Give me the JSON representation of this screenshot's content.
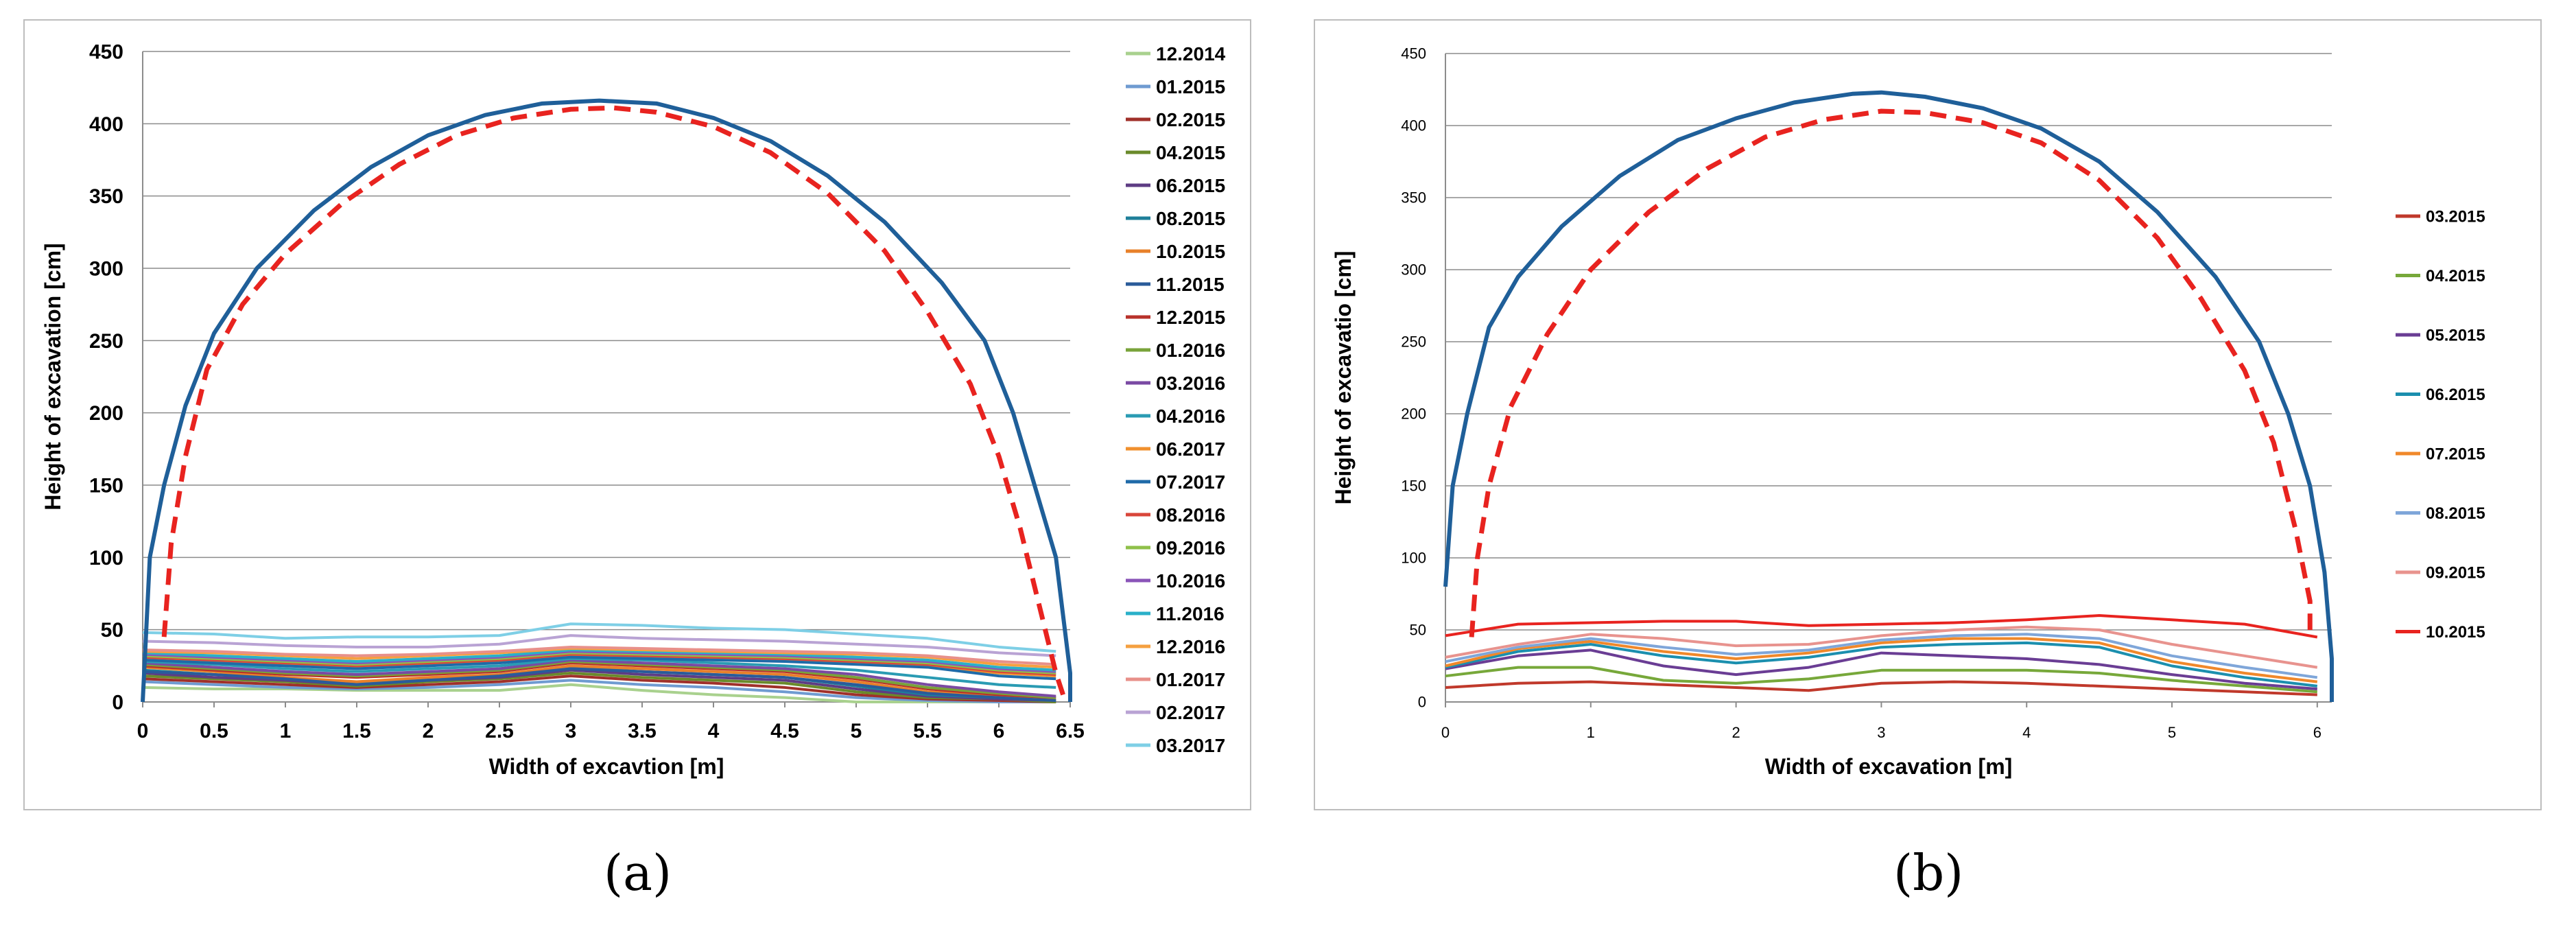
{
  "figure": {
    "caption_a": "(a)",
    "caption_b": "(b)"
  },
  "chart_data": [
    {
      "type": "line",
      "id": "a",
      "title": "",
      "xlabel": "Width of excavtion [m]",
      "ylabel": "Height of excavation [cm]",
      "xlim": [
        0,
        6.5
      ],
      "ylim": [
        0,
        450
      ],
      "x_ticks": [
        0,
        0.5,
        1,
        1.5,
        2,
        2.5,
        3,
        3.5,
        4,
        4.5,
        5,
        5.5,
        6,
        6.5
      ],
      "y_ticks": [
        0,
        50,
        100,
        150,
        200,
        250,
        300,
        350,
        400,
        450
      ],
      "grid": "horizontal",
      "legend_position": "right",
      "outline": {
        "name": "excavation profile",
        "color": "#1f5f99",
        "x": [
          0,
          0.05,
          0.15,
          0.3,
          0.5,
          0.8,
          1.2,
          1.6,
          2,
          2.4,
          2.8,
          3.2,
          3.6,
          4,
          4.4,
          4.8,
          5.2,
          5.6,
          5.9,
          6.1,
          6.25,
          6.4,
          6.5,
          6.5
        ],
        "y": [
          0,
          100,
          150,
          205,
          255,
          300,
          340,
          370,
          392,
          406,
          414,
          416,
          414,
          404,
          388,
          364,
          332,
          290,
          250,
          200,
          150,
          100,
          20,
          0
        ]
      },
      "design_profile": {
        "name": "design profile",
        "color": "#e8231f",
        "x": [
          0.15,
          0.2,
          0.3,
          0.45,
          0.7,
          1,
          1.4,
          1.8,
          2.2,
          2.6,
          3,
          3.3,
          3.6,
          4,
          4.4,
          4.8,
          5.2,
          5.5,
          5.8,
          6,
          6.15,
          6.3,
          6.4,
          6.45
        ],
        "y": [
          45,
          110,
          170,
          230,
          275,
          310,
          345,
          372,
          392,
          404,
          410,
          411,
          408,
          398,
          380,
          352,
          312,
          270,
          220,
          170,
          120,
          60,
          20,
          5
        ]
      },
      "x": [
        0,
        0.5,
        1,
        1.5,
        2,
        2.5,
        3,
        3.5,
        4,
        4.5,
        5,
        5.5,
        6,
        6.4
      ],
      "series": [
        {
          "name": "12.2014",
          "color": "#a9d18e",
          "values": [
            10,
            9,
            9,
            8,
            8,
            8,
            12,
            8,
            5,
            3,
            0,
            0,
            0,
            0
          ]
        },
        {
          "name": "01.2015",
          "color": "#6f9bd1",
          "values": [
            14,
            12,
            10,
            9,
            10,
            12,
            15,
            12,
            10,
            7,
            3,
            1,
            0,
            0
          ]
        },
        {
          "name": "02.2015",
          "color": "#a0302a",
          "values": [
            16,
            14,
            12,
            10,
            12,
            14,
            18,
            15,
            13,
            10,
            5,
            2,
            1,
            0
          ]
        },
        {
          "name": "04.2015",
          "color": "#6a8a2b",
          "values": [
            18,
            16,
            14,
            11,
            14,
            16,
            20,
            17,
            15,
            13,
            7,
            3,
            2,
            0
          ]
        },
        {
          "name": "06.2015",
          "color": "#5e3c84",
          "values": [
            20,
            17,
            15,
            12,
            15,
            17,
            22,
            19,
            17,
            15,
            9,
            4,
            2,
            1
          ]
        },
        {
          "name": "08.2015",
          "color": "#1e7f99",
          "values": [
            22,
            19,
            16,
            13,
            16,
            18,
            24,
            21,
            19,
            17,
            11,
            5,
            3,
            1
          ]
        },
        {
          "name": "10.2015",
          "color": "#e8802a",
          "values": [
            24,
            21,
            17,
            14,
            17,
            19,
            25,
            23,
            21,
            19,
            14,
            7,
            4,
            2
          ]
        },
        {
          "name": "11.2015",
          "color": "#2a5b9a",
          "values": [
            21,
            19,
            16,
            12,
            15,
            18,
            23,
            21,
            19,
            17,
            12,
            6,
            3,
            1
          ]
        },
        {
          "name": "12.2015",
          "color": "#b8312a",
          "values": [
            25,
            22,
            19,
            17,
            19,
            21,
            27,
            25,
            23,
            21,
            16,
            9,
            5,
            3
          ]
        },
        {
          "name": "01.2016",
          "color": "#79a33a",
          "values": [
            26,
            23,
            20,
            18,
            20,
            22,
            28,
            26,
            24,
            22,
            17,
            10,
            6,
            3
          ]
        },
        {
          "name": "03.2016",
          "color": "#7a4aa3",
          "values": [
            27,
            24,
            21,
            19,
            21,
            23,
            29,
            27,
            25,
            23,
            19,
            12,
            7,
            4
          ]
        },
        {
          "name": "04.2016",
          "color": "#2a9bb3",
          "values": [
            28,
            26,
            23,
            21,
            23,
            25,
            30,
            29,
            27,
            25,
            22,
            17,
            12,
            10
          ]
        },
        {
          "name": "06.2017",
          "color": "#f0902e",
          "values": [
            30,
            28,
            26,
            24,
            26,
            28,
            32,
            31,
            30,
            29,
            27,
            25,
            20,
            18
          ]
        },
        {
          "name": "07.2017",
          "color": "#1f6aa8",
          "values": [
            29,
            27,
            25,
            23,
            25,
            27,
            31,
            30,
            29,
            28,
            26,
            24,
            18,
            16
          ]
        },
        {
          "name": "08.2016",
          "color": "#d9463a",
          "values": [
            31,
            29,
            27,
            25,
            27,
            29,
            33,
            32,
            31,
            30,
            28,
            26,
            21,
            19
          ]
        },
        {
          "name": "09.2016",
          "color": "#8fc04a",
          "values": [
            32,
            30,
            28,
            26,
            28,
            30,
            34,
            33,
            32,
            31,
            29,
            27,
            22,
            20
          ]
        },
        {
          "name": "10.2016",
          "color": "#8a54b8",
          "values": [
            33,
            31,
            29,
            27,
            29,
            31,
            35,
            34,
            33,
            32,
            30,
            28,
            23,
            21
          ]
        },
        {
          "name": "11.2016",
          "color": "#2ab0c9",
          "values": [
            34,
            32,
            30,
            28,
            30,
            32,
            36,
            35,
            34,
            33,
            31,
            29,
            24,
            22
          ]
        },
        {
          "name": "12.2016",
          "color": "#f5a040",
          "values": [
            35,
            34,
            32,
            30,
            32,
            34,
            37,
            36,
            35,
            34,
            33,
            31,
            26,
            24
          ]
        },
        {
          "name": "01.2017",
          "color": "#e8908a",
          "values": [
            36,
            35,
            33,
            32,
            33,
            35,
            38,
            37,
            36,
            35,
            34,
            32,
            28,
            26
          ]
        },
        {
          "name": "02.2017",
          "color": "#b9a3d4",
          "values": [
            42,
            41,
            39,
            38,
            38,
            40,
            46,
            44,
            43,
            42,
            40,
            38,
            34,
            32
          ]
        },
        {
          "name": "03.2017",
          "color": "#7ecfe6",
          "values": [
            48,
            47,
            44,
            45,
            45,
            46,
            54,
            53,
            51,
            50,
            47,
            44,
            38,
            35
          ]
        }
      ]
    },
    {
      "type": "line",
      "id": "b",
      "title": "",
      "xlabel": "Width of excavation [m]",
      "ylabel": "Height of excavatio [cm]",
      "xlim": [
        0,
        6.1
      ],
      "ylim": [
        0,
        450
      ],
      "x_ticks": [
        0,
        1,
        2,
        3,
        4,
        5,
        6
      ],
      "y_ticks": [
        0,
        50,
        100,
        150,
        200,
        250,
        300,
        350,
        400,
        450
      ],
      "grid": "horizontal",
      "legend_position": "right",
      "outline": {
        "name": "excavation profile",
        "color": "#1f5f99",
        "x": [
          0,
          0.05,
          0.15,
          0.3,
          0.5,
          0.8,
          1.2,
          1.6,
          2,
          2.4,
          2.8,
          3,
          3.3,
          3.7,
          4.1,
          4.5,
          4.9,
          5.3,
          5.6,
          5.8,
          5.95,
          6.05,
          6.1,
          6.1
        ],
        "y": [
          80,
          150,
          200,
          260,
          295,
          330,
          365,
          390,
          405,
          416,
          422,
          423,
          420,
          412,
          398,
          375,
          340,
          295,
          250,
          200,
          150,
          90,
          30,
          0
        ]
      },
      "design_profile": {
        "name": "design profile",
        "color": "#e8231f",
        "x": [
          0.18,
          0.22,
          0.3,
          0.45,
          0.7,
          1,
          1.4,
          1.8,
          2.2,
          2.6,
          3,
          3.3,
          3.7,
          4.1,
          4.5,
          4.9,
          5.2,
          5.5,
          5.7,
          5.85,
          5.95,
          5.95
        ],
        "y": [
          45,
          100,
          150,
          205,
          255,
          300,
          340,
          370,
          392,
          404,
          410,
          409,
          402,
          388,
          362,
          322,
          280,
          230,
          180,
          120,
          70,
          45
        ]
      },
      "x": [
        0,
        0.5,
        1,
        1.5,
        2,
        2.5,
        3,
        3.5,
        4,
        4.5,
        5,
        5.5,
        6
      ],
      "series": [
        {
          "name": "03.2015",
          "color": "#c0392b",
          "values": [
            10,
            13,
            14,
            12,
            10,
            8,
            13,
            14,
            13,
            11,
            9,
            7,
            5
          ]
        },
        {
          "name": "04.2015",
          "color": "#77a83a",
          "values": [
            18,
            24,
            24,
            15,
            13,
            16,
            22,
            22,
            22,
            20,
            15,
            11,
            7
          ]
        },
        {
          "name": "05.2015",
          "color": "#6a3d94",
          "values": [
            23,
            32,
            36,
            25,
            19,
            24,
            34,
            32,
            30,
            26,
            19,
            13,
            9
          ]
        },
        {
          "name": "06.2015",
          "color": "#1b8fae",
          "values": [
            24,
            35,
            40,
            32,
            27,
            31,
            38,
            40,
            41,
            38,
            25,
            17,
            11
          ]
        },
        {
          "name": "07.2015",
          "color": "#f0882a",
          "values": [
            25,
            37,
            42,
            35,
            30,
            34,
            41,
            44,
            44,
            41,
            28,
            20,
            14
          ]
        },
        {
          "name": "08.2015",
          "color": "#7fa6d9",
          "values": [
            28,
            38,
            44,
            38,
            33,
            36,
            43,
            46,
            47,
            44,
            32,
            24,
            17
          ]
        },
        {
          "name": "09.2015",
          "color": "#e8938e",
          "values": [
            31,
            40,
            47,
            44,
            39,
            40,
            46,
            50,
            52,
            50,
            40,
            32,
            24
          ]
        },
        {
          "name": "10.2015",
          "color": "#e8231f",
          "values": [
            46,
            54,
            55,
            56,
            56,
            53,
            54,
            55,
            57,
            60,
            57,
            54,
            45
          ]
        }
      ]
    }
  ]
}
